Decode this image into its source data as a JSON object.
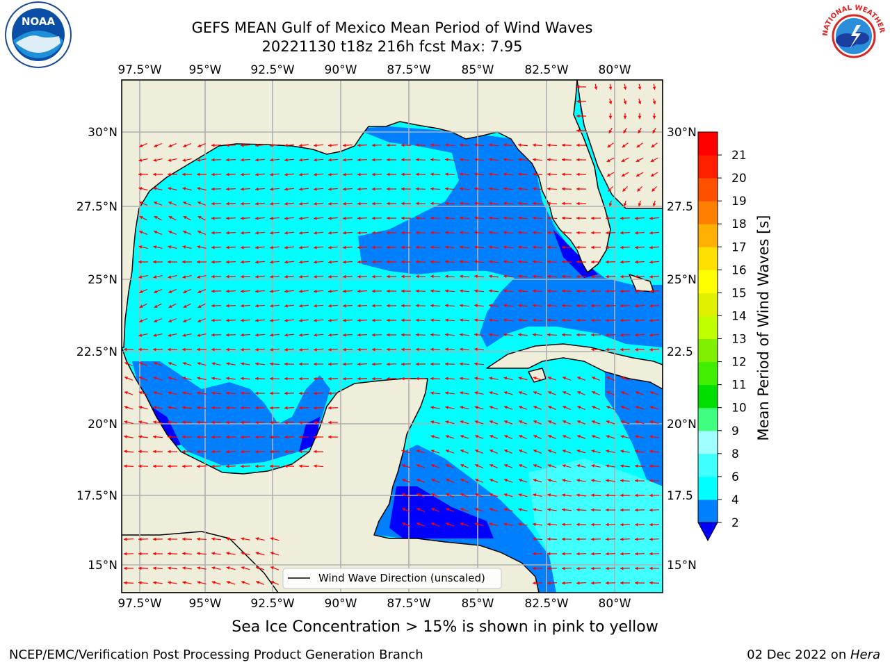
{
  "header": {
    "title_line1": "GEFS MEAN Gulf of Mexico Mean Period of Wind Waves",
    "title_line2": "20221130 t18z 216h fcst   Max: 7.95"
  },
  "logos": {
    "noaa_text": "NOAA",
    "nws_text": "NATIONAL WEATHER SERVICE"
  },
  "map": {
    "lon_labels": [
      "97.5°W",
      "95°W",
      "92.5°W",
      "90°W",
      "87.5°W",
      "85°W",
      "82.5°W",
      "80°W"
    ],
    "lat_labels": [
      "30°N",
      "27.5°N",
      "25°N",
      "22.5°N",
      "20°N",
      "17.5°N",
      "15°N"
    ],
    "lat_labels_right": [
      "30°N",
      "27.5",
      "25°N",
      "22.5",
      "20°N",
      "17.5",
      "15°N"
    ],
    "legend_label": "Wind Wave Direction (unscaled)",
    "colors": {
      "land": "#efeedb",
      "ocean_2_4": "#0080ff",
      "ocean_4_6": "#00ffff",
      "ocean_6_8": "#40ffff",
      "ocean_lt_2": "#0000ff",
      "arrow": "#ff0000"
    }
  },
  "colorbar": {
    "label": "Mean Period of Wind Waves [s]",
    "ticks": [
      "2",
      "4",
      "6",
      "8",
      "9",
      "10",
      "11",
      "12",
      "13",
      "14",
      "15",
      "16",
      "17",
      "18",
      "19",
      "20",
      "21"
    ],
    "colors": [
      "#0080ff",
      "#00ffff",
      "#40ffff",
      "#a0ffff",
      "#40ff80",
      "#00e000",
      "#40ee00",
      "#80f000",
      "#c0ff00",
      "#e0f000",
      "#ffff00",
      "#ffe000",
      "#ffb000",
      "#ff8000",
      "#ff5000",
      "#ff2000",
      "#ff0000"
    ],
    "extend_color": "#0000ff"
  },
  "footer": {
    "note": "Sea Ice Concentration > 15% is shown in pink to yellow",
    "credit_left": "NCEP/EMC/Verification Post Processing Product Generation Branch",
    "credit_date": "02 Dec 2022 on ",
    "credit_host": "Hera"
  }
}
